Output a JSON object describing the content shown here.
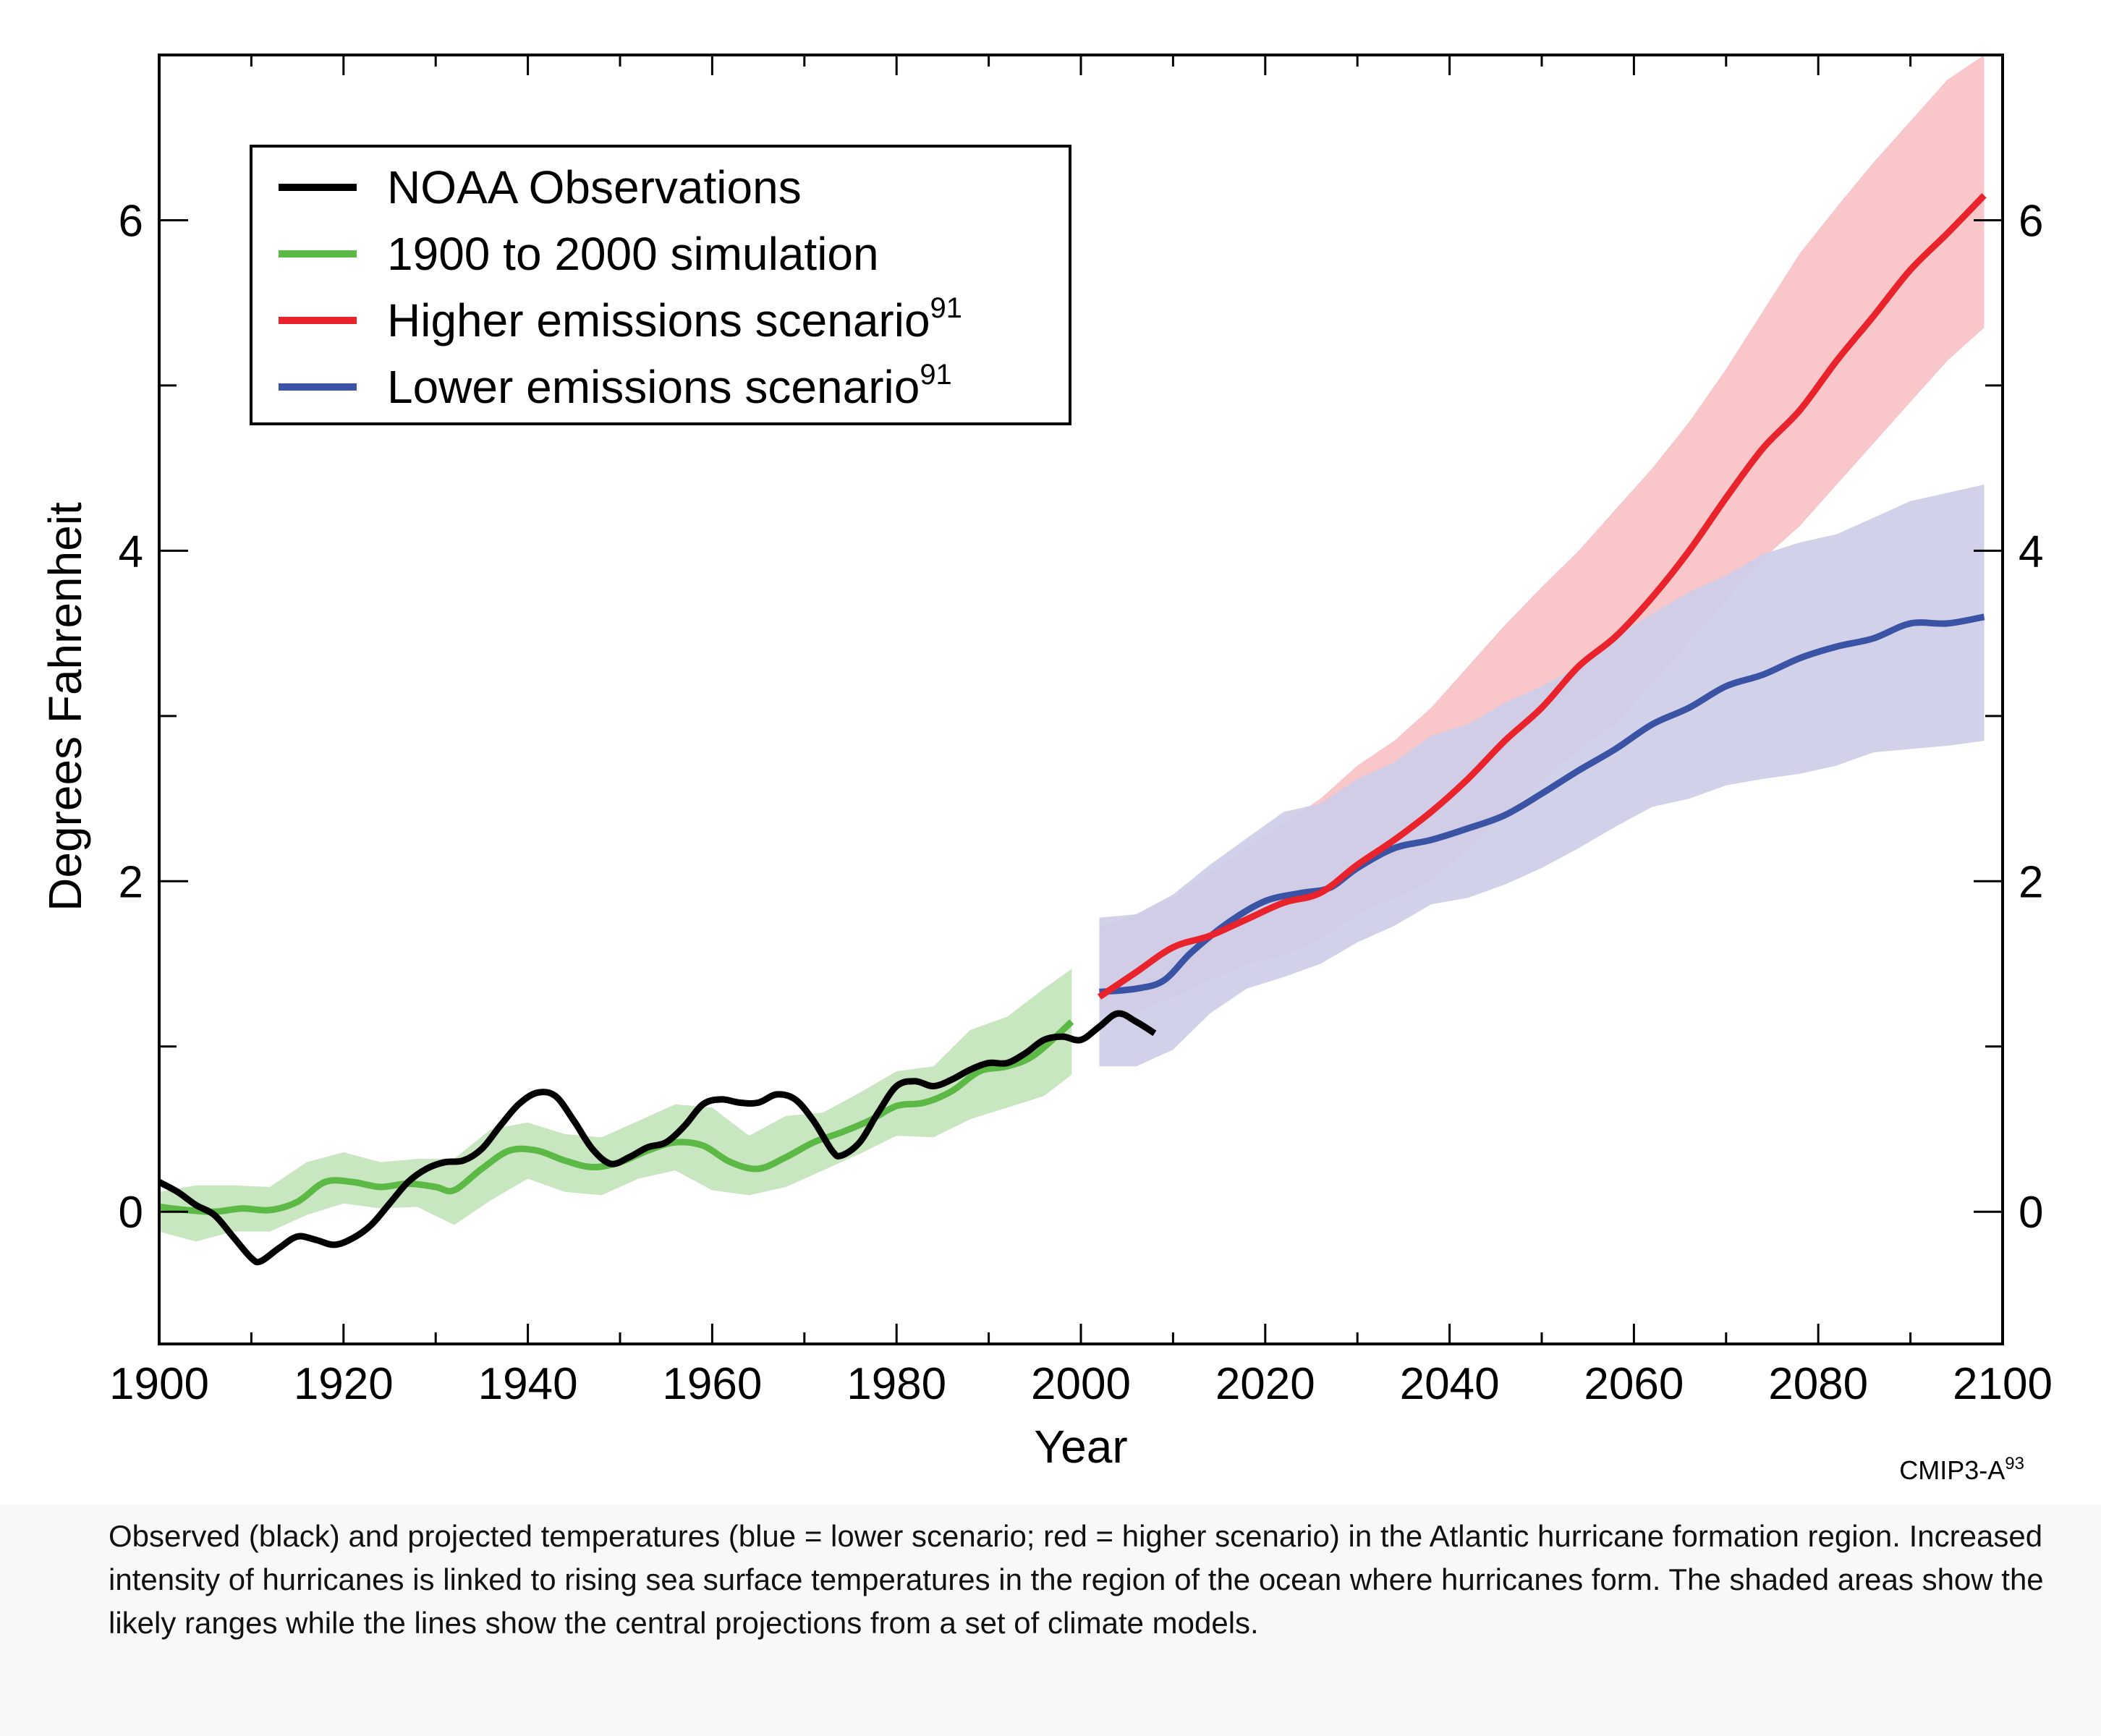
{
  "chart_data": {
    "type": "line",
    "xlabel": "Year",
    "ylabel": "Degrees Fahrenheit",
    "xlim": [
      1900,
      2100
    ],
    "ylim": [
      -0.8,
      7.0
    ],
    "x_ticks": [
      1900,
      1920,
      1940,
      1960,
      1980,
      2000,
      2020,
      2040,
      2060,
      2080,
      2100
    ],
    "y_ticks": [
      0,
      2,
      4,
      6
    ],
    "source_label": "CMIP3-A",
    "source_sup": "93",
    "legend": {
      "placement": "top-left",
      "entries": [
        {
          "label": "NOAA Observations",
          "sup": "",
          "color": "#000000"
        },
        {
          "label": "1900 to 2000 simulation",
          "sup": "",
          "color": "#5cb946"
        },
        {
          "label": "Higher emissions scenario",
          "sup": "91",
          "color": "#e8232b"
        },
        {
          "label": "Lower emissions scenario",
          "sup": "91",
          "color": "#3b53a4"
        }
      ]
    },
    "series": [
      {
        "name": "NOAA Observations",
        "color": "#000000",
        "points": [
          [
            1900,
            0.18
          ],
          [
            1902,
            0.12
          ],
          [
            1904,
            0.04
          ],
          [
            1906,
            -0.02
          ],
          [
            1908,
            -0.15
          ],
          [
            1910,
            -0.28
          ],
          [
            1911,
            -0.3
          ],
          [
            1913,
            -0.22
          ],
          [
            1915,
            -0.15
          ],
          [
            1917,
            -0.17
          ],
          [
            1919,
            -0.2
          ],
          [
            1921,
            -0.16
          ],
          [
            1923,
            -0.08
          ],
          [
            1925,
            0.05
          ],
          [
            1927,
            0.18
          ],
          [
            1929,
            0.26
          ],
          [
            1931,
            0.3
          ],
          [
            1933,
            0.31
          ],
          [
            1935,
            0.38
          ],
          [
            1937,
            0.52
          ],
          [
            1939,
            0.65
          ],
          [
            1941,
            0.72
          ],
          [
            1943,
            0.7
          ],
          [
            1945,
            0.55
          ],
          [
            1947,
            0.38
          ],
          [
            1949,
            0.29
          ],
          [
            1951,
            0.33
          ],
          [
            1953,
            0.39
          ],
          [
            1955,
            0.42
          ],
          [
            1957,
            0.52
          ],
          [
            1959,
            0.65
          ],
          [
            1961,
            0.68
          ],
          [
            1963,
            0.66
          ],
          [
            1965,
            0.66
          ],
          [
            1967,
            0.71
          ],
          [
            1969,
            0.68
          ],
          [
            1971,
            0.55
          ],
          [
            1973,
            0.37
          ],
          [
            1974,
            0.34
          ],
          [
            1976,
            0.42
          ],
          [
            1978,
            0.6
          ],
          [
            1980,
            0.76
          ],
          [
            1982,
            0.79
          ],
          [
            1984,
            0.76
          ],
          [
            1986,
            0.8
          ],
          [
            1988,
            0.86
          ],
          [
            1990,
            0.9
          ],
          [
            1992,
            0.9
          ],
          [
            1994,
            0.96
          ],
          [
            1996,
            1.04
          ],
          [
            1998,
            1.06
          ],
          [
            2000,
            1.04
          ],
          [
            2002,
            1.12
          ],
          [
            2004,
            1.2
          ],
          [
            2006,
            1.15
          ],
          [
            2008,
            1.08
          ]
        ]
      },
      {
        "name": "1900 to 2000 simulation",
        "color": "#5cb946",
        "points": [
          [
            1900,
            0.03
          ],
          [
            1903,
            0.01
          ],
          [
            1906,
            0.0
          ],
          [
            1909,
            0.02
          ],
          [
            1912,
            0.01
          ],
          [
            1915,
            0.06
          ],
          [
            1918,
            0.18
          ],
          [
            1921,
            0.18
          ],
          [
            1924,
            0.15
          ],
          [
            1927,
            0.17
          ],
          [
            1930,
            0.15
          ],
          [
            1932,
            0.13
          ],
          [
            1935,
            0.26
          ],
          [
            1938,
            0.37
          ],
          [
            1941,
            0.37
          ],
          [
            1944,
            0.31
          ],
          [
            1947,
            0.27
          ],
          [
            1950,
            0.3
          ],
          [
            1953,
            0.37
          ],
          [
            1956,
            0.42
          ],
          [
            1959,
            0.4
          ],
          [
            1962,
            0.3
          ],
          [
            1965,
            0.26
          ],
          [
            1968,
            0.33
          ],
          [
            1971,
            0.42
          ],
          [
            1974,
            0.48
          ],
          [
            1977,
            0.55
          ],
          [
            1980,
            0.64
          ],
          [
            1983,
            0.66
          ],
          [
            1986,
            0.73
          ],
          [
            1989,
            0.85
          ],
          [
            1992,
            0.88
          ],
          [
            1995,
            0.95
          ],
          [
            1999,
            1.15
          ]
        ],
        "band": [
          [
            1900,
            -0.12,
            0.12
          ],
          [
            1904,
            -0.18,
            0.16
          ],
          [
            1908,
            -0.12,
            0.16
          ],
          [
            1912,
            -0.12,
            0.15
          ],
          [
            1916,
            -0.02,
            0.3
          ],
          [
            1920,
            0.05,
            0.36
          ],
          [
            1924,
            0.02,
            0.3
          ],
          [
            1928,
            0.03,
            0.32
          ],
          [
            1932,
            -0.08,
            0.32
          ],
          [
            1936,
            0.07,
            0.5
          ],
          [
            1940,
            0.2,
            0.54
          ],
          [
            1944,
            0.12,
            0.47
          ],
          [
            1948,
            0.1,
            0.45
          ],
          [
            1952,
            0.2,
            0.55
          ],
          [
            1956,
            0.25,
            0.65
          ],
          [
            1960,
            0.13,
            0.63
          ],
          [
            1964,
            0.1,
            0.46
          ],
          [
            1968,
            0.15,
            0.58
          ],
          [
            1972,
            0.25,
            0.6
          ],
          [
            1976,
            0.35,
            0.72
          ],
          [
            1980,
            0.46,
            0.85
          ],
          [
            1984,
            0.45,
            0.88
          ],
          [
            1988,
            0.56,
            1.1
          ],
          [
            1992,
            0.63,
            1.18
          ],
          [
            1996,
            0.7,
            1.35
          ],
          [
            1999,
            0.83,
            1.47
          ]
        ]
      },
      {
        "name": "Higher emissions scenario",
        "color": "#e8232b",
        "points": [
          [
            2002,
            1.3
          ],
          [
            2006,
            1.45
          ],
          [
            2010,
            1.6
          ],
          [
            2014,
            1.67
          ],
          [
            2018,
            1.77
          ],
          [
            2022,
            1.87
          ],
          [
            2026,
            1.93
          ],
          [
            2030,
            2.1
          ],
          [
            2034,
            2.25
          ],
          [
            2038,
            2.42
          ],
          [
            2042,
            2.62
          ],
          [
            2046,
            2.85
          ],
          [
            2050,
            3.05
          ],
          [
            2054,
            3.3
          ],
          [
            2058,
            3.48
          ],
          [
            2062,
            3.72
          ],
          [
            2066,
            4.0
          ],
          [
            2070,
            4.32
          ],
          [
            2074,
            4.62
          ],
          [
            2078,
            4.85
          ],
          [
            2082,
            5.15
          ],
          [
            2086,
            5.42
          ],
          [
            2090,
            5.7
          ],
          [
            2094,
            5.92
          ],
          [
            2098,
            6.15
          ]
        ],
        "band": [
          [
            2002,
            1.2,
            1.72
          ],
          [
            2006,
            1.2,
            1.8
          ],
          [
            2010,
            1.3,
            1.9
          ],
          [
            2014,
            1.4,
            2.05
          ],
          [
            2018,
            1.5,
            2.2
          ],
          [
            2022,
            1.55,
            2.35
          ],
          [
            2026,
            1.65,
            2.5
          ],
          [
            2030,
            1.8,
            2.7
          ],
          [
            2034,
            1.9,
            2.85
          ],
          [
            2038,
            2.0,
            3.05
          ],
          [
            2042,
            2.2,
            3.3
          ],
          [
            2046,
            2.4,
            3.55
          ],
          [
            2050,
            2.6,
            3.78
          ],
          [
            2054,
            2.8,
            4.0
          ],
          [
            2058,
            2.95,
            4.25
          ],
          [
            2062,
            3.2,
            4.5
          ],
          [
            2066,
            3.45,
            4.78
          ],
          [
            2070,
            3.7,
            5.1
          ],
          [
            2074,
            3.95,
            5.45
          ],
          [
            2078,
            4.15,
            5.8
          ],
          [
            2082,
            4.4,
            6.08
          ],
          [
            2086,
            4.65,
            6.35
          ],
          [
            2090,
            4.9,
            6.6
          ],
          [
            2094,
            5.15,
            6.85
          ],
          [
            2098,
            5.35,
            7.0
          ]
        ]
      },
      {
        "name": "Lower emissions scenario",
        "color": "#3b53a4",
        "points": [
          [
            2002,
            1.33
          ],
          [
            2006,
            1.35
          ],
          [
            2009,
            1.4
          ],
          [
            2012,
            1.57
          ],
          [
            2016,
            1.75
          ],
          [
            2020,
            1.88
          ],
          [
            2024,
            1.93
          ],
          [
            2027,
            1.96
          ],
          [
            2030,
            2.08
          ],
          [
            2034,
            2.2
          ],
          [
            2038,
            2.25
          ],
          [
            2042,
            2.32
          ],
          [
            2046,
            2.4
          ],
          [
            2050,
            2.53
          ],
          [
            2054,
            2.67
          ],
          [
            2058,
            2.8
          ],
          [
            2062,
            2.95
          ],
          [
            2066,
            3.05
          ],
          [
            2070,
            3.18
          ],
          [
            2074,
            3.25
          ],
          [
            2078,
            3.35
          ],
          [
            2082,
            3.42
          ],
          [
            2086,
            3.47
          ],
          [
            2090,
            3.56
          ],
          [
            2094,
            3.56
          ],
          [
            2098,
            3.6
          ]
        ],
        "band": [
          [
            2002,
            0.88,
            1.78
          ],
          [
            2006,
            0.88,
            1.8
          ],
          [
            2010,
            0.98,
            1.92
          ],
          [
            2014,
            1.2,
            2.1
          ],
          [
            2018,
            1.35,
            2.26
          ],
          [
            2022,
            1.42,
            2.42
          ],
          [
            2026,
            1.5,
            2.47
          ],
          [
            2030,
            1.63,
            2.62
          ],
          [
            2034,
            1.73,
            2.72
          ],
          [
            2038,
            1.86,
            2.88
          ],
          [
            2042,
            1.9,
            2.95
          ],
          [
            2046,
            1.98,
            3.08
          ],
          [
            2050,
            2.08,
            3.18
          ],
          [
            2054,
            2.2,
            3.3
          ],
          [
            2058,
            2.33,
            3.48
          ],
          [
            2062,
            2.45,
            3.62
          ],
          [
            2066,
            2.5,
            3.75
          ],
          [
            2070,
            2.58,
            3.85
          ],
          [
            2074,
            2.62,
            3.98
          ],
          [
            2078,
            2.65,
            4.05
          ],
          [
            2082,
            2.7,
            4.1
          ],
          [
            2086,
            2.78,
            4.2
          ],
          [
            2090,
            2.8,
            4.3
          ],
          [
            2094,
            2.82,
            4.35
          ],
          [
            2098,
            2.85,
            4.4
          ]
        ]
      }
    ]
  },
  "caption": "Observed (black) and projected temperatures (blue = lower scenario; red = higher scenario) in the Atlantic hurricane formation region. Increased intensity of hurricanes is linked to rising sea surface temperatures in the region of the ocean where hurricanes form. The shaded areas show the likely ranges while the lines show the central projections from a set of climate models."
}
